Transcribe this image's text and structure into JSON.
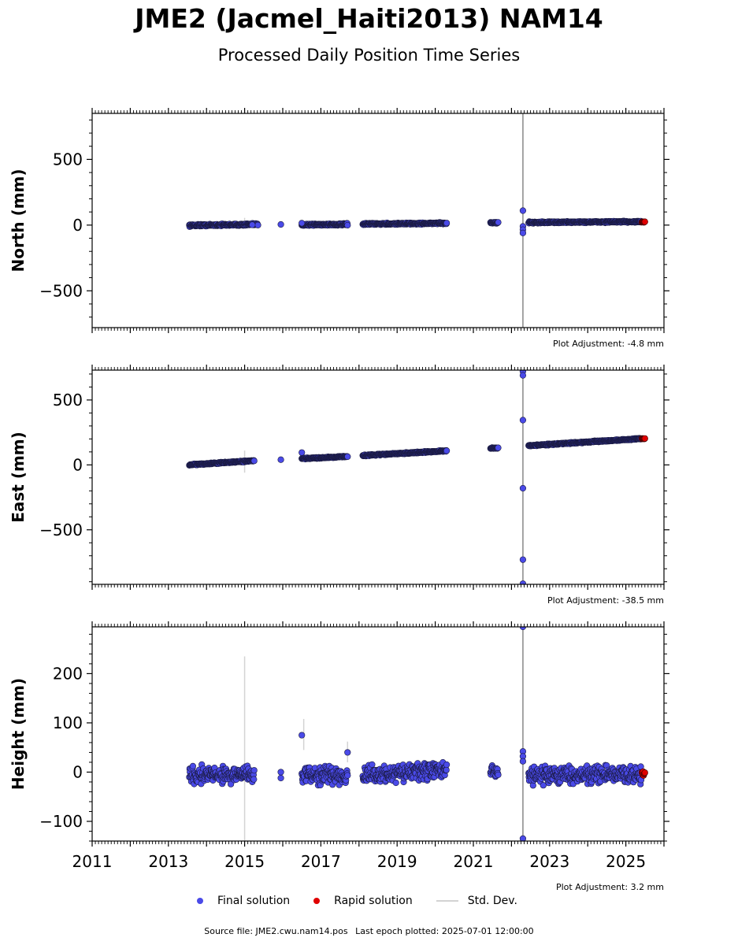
{
  "page": {
    "title": "JME2 (Jacmel_Haiti2013) NAM14",
    "subtitle": "Processed Daily Position Time Series",
    "footer_source": "Source file: JME2.cwu.nam14.pos",
    "footer_epoch": "Last epoch plotted: 2025-07-01 12:00:00"
  },
  "legend": {
    "final_label": "Final solution",
    "rapid_label": "Rapid solution",
    "std_label": "Std. Dev."
  },
  "colors": {
    "final": "#4a4ae8",
    "rapid": "#e00000",
    "std": "#d3d3d3",
    "marker_edge": "#1a1a40"
  },
  "chart_data": [
    {
      "type": "scatter",
      "ylabel": "North (mm)",
      "adjustment": "Plot Adjustment: -4.8 mm",
      "xlim": [
        2011,
        2026
      ],
      "ylim": [
        -780,
        850
      ],
      "yticks": [
        -500,
        0,
        500
      ],
      "yticklabels": [
        "−500",
        "0",
        "500"
      ],
      "segments": [
        {
          "x": [
            2013.55,
            2015.35
          ],
          "y": [
            -2,
            5
          ],
          "noise": 6
        },
        {
          "x": [
            2016.5,
            2017.7
          ],
          "y": [
            3,
            5
          ],
          "noise": 6
        },
        {
          "x": [
            2018.1,
            2020.3
          ],
          "y": [
            8,
            14
          ],
          "noise": 5
        },
        {
          "x": [
            2021.45,
            2021.65
          ],
          "y": [
            18,
            18
          ],
          "noise": 4
        },
        {
          "x": [
            2022.45,
            2025.4
          ],
          "y": [
            20,
            26
          ],
          "noise": 5
        }
      ],
      "outliers": [
        {
          "x": 2015.2,
          "y": 2
        },
        {
          "x": 2015.95,
          "y": 5
        },
        {
          "x": 2016.5,
          "y": 15
        },
        {
          "x": 2022.3,
          "y": 110
        },
        {
          "x": 2022.3,
          "y": -10
        },
        {
          "x": 2022.3,
          "y": -35
        },
        {
          "x": 2022.3,
          "y": -60
        }
      ],
      "rapid": {
        "x": [
          2025.42,
          2025.5
        ],
        "y": [
          23,
          23
        ]
      },
      "errorbars": [
        {
          "x": 2015.0,
          "y0": -20,
          "y1": 55,
          "color": "#d3d3d3"
        },
        {
          "x": 2022.3,
          "y0": -780,
          "y1": 850,
          "color": "#888888"
        }
      ]
    },
    {
      "type": "scatter",
      "ylabel": "East (mm)",
      "adjustment": "Plot Adjustment: -38.5 mm",
      "xlim": [
        2011,
        2026
      ],
      "ylim": [
        -920,
        730
      ],
      "yticks": [
        -500,
        0,
        500
      ],
      "yticklabels": [
        "−500",
        "0",
        "500"
      ],
      "segments": [
        {
          "x": [
            2013.55,
            2015.25
          ],
          "y": [
            0,
            32
          ],
          "noise": 4
        },
        {
          "x": [
            2016.5,
            2017.7
          ],
          "y": [
            48,
            65
          ],
          "noise": 4
        },
        {
          "x": [
            2018.1,
            2020.3
          ],
          "y": [
            72,
            108
          ],
          "noise": 4
        },
        {
          "x": [
            2021.45,
            2021.65
          ],
          "y": [
            128,
            130
          ],
          "noise": 3
        },
        {
          "x": [
            2022.45,
            2025.4
          ],
          "y": [
            148,
            202
          ],
          "noise": 4
        }
      ],
      "outliers": [
        {
          "x": 2015.95,
          "y": 40
        },
        {
          "x": 2016.5,
          "y": 95
        },
        {
          "x": 2022.3,
          "y": 720
        },
        {
          "x": 2022.3,
          "y": 690
        },
        {
          "x": 2022.3,
          "y": 345
        },
        {
          "x": 2022.3,
          "y": -180
        },
        {
          "x": 2022.3,
          "y": -730
        },
        {
          "x": 2022.3,
          "y": -915
        }
      ],
      "rapid": {
        "x": [
          2025.42,
          2025.5
        ],
        "y": [
          202,
          203
        ]
      },
      "errorbars": [
        {
          "x": 2015.0,
          "y0": -60,
          "y1": 110,
          "color": "#d3d3d3"
        },
        {
          "x": 2022.3,
          "y0": -920,
          "y1": 730,
          "color": "#888888"
        }
      ]
    },
    {
      "type": "scatter",
      "ylabel": "Height (mm)",
      "adjustment": "Plot Adjustment: 3.2 mm",
      "xlim": [
        2011,
        2026
      ],
      "ylim": [
        -140,
        295
      ],
      "yticks": [
        -100,
        0,
        100,
        200
      ],
      "yticklabels": [
        "−100",
        "0",
        "100",
        "200"
      ],
      "xticks": [
        2011,
        2013,
        2015,
        2017,
        2019,
        2021,
        2023,
        2025
      ],
      "segments": [
        {
          "x": [
            2013.55,
            2015.25
          ],
          "y": [
            -5,
            -5
          ],
          "noise": 14
        },
        {
          "x": [
            2016.5,
            2017.7
          ],
          "y": [
            -6,
            -6
          ],
          "noise": 14
        },
        {
          "x": [
            2018.1,
            2020.3
          ],
          "y": [
            -8,
            5
          ],
          "noise": 14
        },
        {
          "x": [
            2021.45,
            2021.65
          ],
          "y": [
            0,
            0
          ],
          "noise": 10
        },
        {
          "x": [
            2022.45,
            2025.4
          ],
          "y": [
            -5,
            -5
          ],
          "noise": 14
        }
      ],
      "outliers": [
        {
          "x": 2015.95,
          "y": 0
        },
        {
          "x": 2015.95,
          "y": -12
        },
        {
          "x": 2016.5,
          "y": 75
        },
        {
          "x": 2017.7,
          "y": 40
        },
        {
          "x": 2022.3,
          "y": 295
        },
        {
          "x": 2022.3,
          "y": 42
        },
        {
          "x": 2022.3,
          "y": 32
        },
        {
          "x": 2022.3,
          "y": 22
        },
        {
          "x": 2022.3,
          "y": -135
        }
      ],
      "rapid": {
        "x": [
          2025.42,
          2025.5
        ],
        "y": [
          -5,
          -5
        ]
      },
      "errorbars": [
        {
          "x": 2015.0,
          "y0": -140,
          "y1": 235,
          "color": "#d3d3d3"
        },
        {
          "x": 2016.55,
          "y0": 45,
          "y1": 108,
          "color": "#d3d3d3"
        },
        {
          "x": 2017.7,
          "y0": 20,
          "y1": 62,
          "color": "#d3d3d3"
        },
        {
          "x": 2022.3,
          "y0": -140,
          "y1": 295,
          "color": "#888888"
        }
      ]
    }
  ]
}
